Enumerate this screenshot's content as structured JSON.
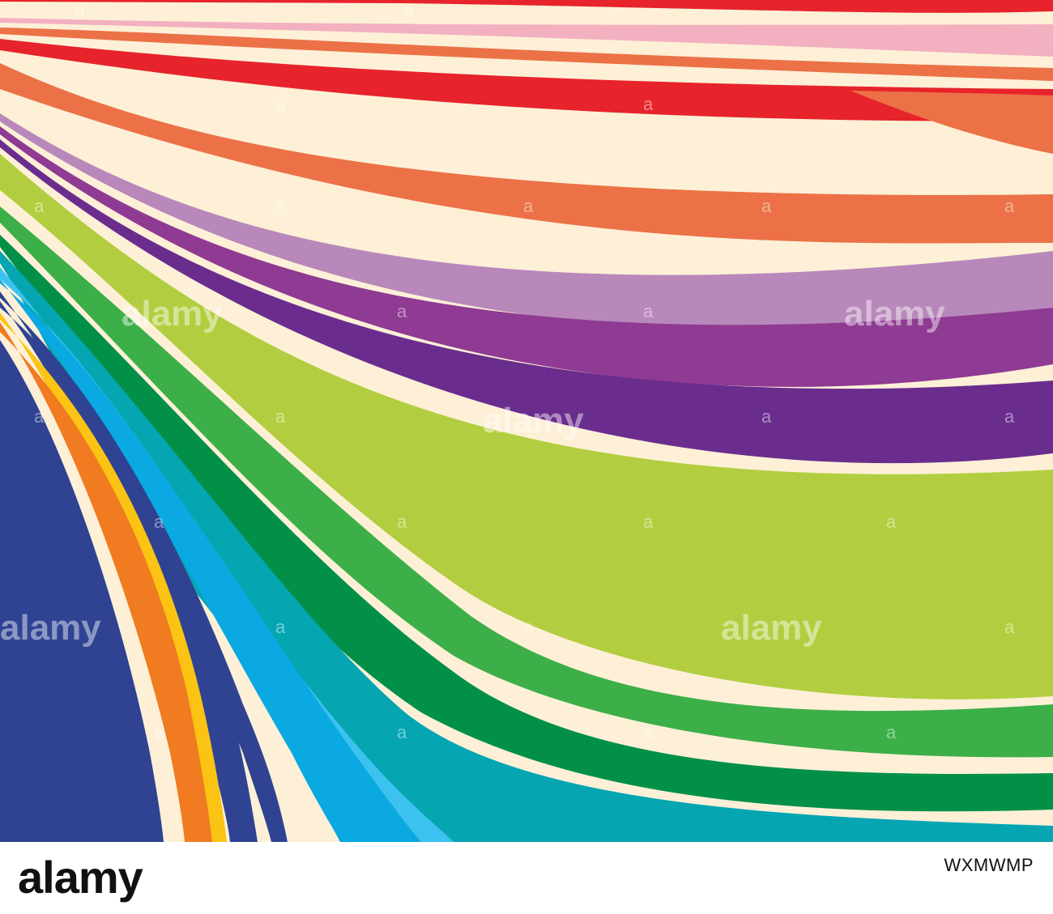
{
  "image": {
    "description_colors": {
      "background": "#fdf0d7",
      "navy": "#2f4392",
      "orange": "#f07b21",
      "yellow": "#fbc313",
      "blue": "#0aa9e1",
      "light_blue": "#3cc2ef",
      "teal": "#05a5b2",
      "green": "#3caf48",
      "dark_green": "#029049",
      "lime": "#b2ce40",
      "indigo": "#6a2d8e",
      "purple": "#8f3a93",
      "lavender": "#b888bb",
      "coral": "#ec7147",
      "red": "#e7232b",
      "pink": "#f3b0c0"
    }
  },
  "watermark": {
    "word": "alamy",
    "letter": "a"
  },
  "footer": {
    "logo": "alamy",
    "stock_id": "WXMWMP"
  }
}
